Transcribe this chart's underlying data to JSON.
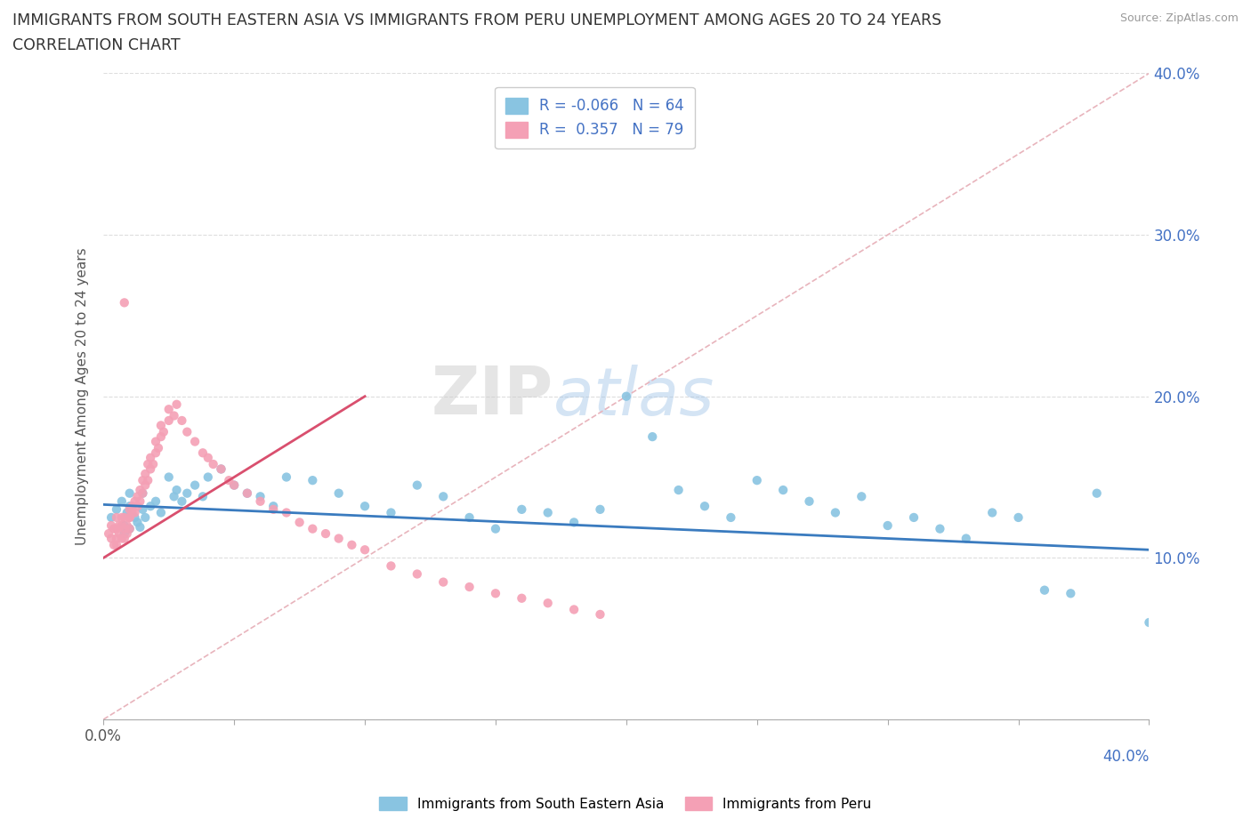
{
  "title_line1": "IMMIGRANTS FROM SOUTH EASTERN ASIA VS IMMIGRANTS FROM PERU UNEMPLOYMENT AMONG AGES 20 TO 24 YEARS",
  "title_line2": "CORRELATION CHART",
  "source_text": "Source: ZipAtlas.com",
  "ylabel": "Unemployment Among Ages 20 to 24 years",
  "xlim": [
    0,
    0.4
  ],
  "ylim": [
    0,
    0.4
  ],
  "xtick_positions": [
    0.0,
    0.05,
    0.1,
    0.15,
    0.2,
    0.25,
    0.3,
    0.35,
    0.4
  ],
  "ytick_positions": [
    0.0,
    0.1,
    0.2,
    0.3,
    0.4
  ],
  "right_yticklabels": [
    "",
    "10.0%",
    "20.0%",
    "30.0%",
    "40.0%"
  ],
  "blue_color": "#89c4e1",
  "pink_color": "#f4a0b5",
  "blue_line_color": "#3a7bbf",
  "pink_line_color": "#d94f6e",
  "diag_line_color": "#e8b4bc",
  "R_blue": -0.066,
  "N_blue": 64,
  "R_pink": 0.357,
  "N_pink": 79,
  "legend_label_blue": "Immigrants from South Eastern Asia",
  "legend_label_pink": "Immigrants from Peru",
  "watermark": "ZIPatlas",
  "background_color": "#ffffff",
  "blue_scatter_x": [
    0.003,
    0.005,
    0.007,
    0.008,
    0.008,
    0.009,
    0.01,
    0.01,
    0.01,
    0.012,
    0.013,
    0.014,
    0.015,
    0.015,
    0.016,
    0.018,
    0.02,
    0.022,
    0.025,
    0.027,
    0.028,
    0.03,
    0.032,
    0.035,
    0.038,
    0.04,
    0.045,
    0.05,
    0.055,
    0.06,
    0.065,
    0.07,
    0.08,
    0.09,
    0.1,
    0.11,
    0.12,
    0.13,
    0.14,
    0.15,
    0.16,
    0.17,
    0.18,
    0.19,
    0.2,
    0.21,
    0.22,
    0.23,
    0.24,
    0.25,
    0.26,
    0.27,
    0.28,
    0.29,
    0.3,
    0.31,
    0.32,
    0.33,
    0.34,
    0.35,
    0.36,
    0.37,
    0.38,
    0.4
  ],
  "blue_scatter_y": [
    0.125,
    0.13,
    0.135,
    0.12,
    0.115,
    0.128,
    0.132,
    0.118,
    0.14,
    0.125,
    0.122,
    0.119,
    0.13,
    0.14,
    0.125,
    0.132,
    0.135,
    0.128,
    0.15,
    0.138,
    0.142,
    0.135,
    0.14,
    0.145,
    0.138,
    0.15,
    0.155,
    0.145,
    0.14,
    0.138,
    0.132,
    0.15,
    0.148,
    0.14,
    0.132,
    0.128,
    0.145,
    0.138,
    0.125,
    0.118,
    0.13,
    0.128,
    0.122,
    0.13,
    0.2,
    0.175,
    0.142,
    0.132,
    0.125,
    0.148,
    0.142,
    0.135,
    0.128,
    0.138,
    0.12,
    0.125,
    0.118,
    0.112,
    0.128,
    0.125,
    0.08,
    0.078,
    0.14,
    0.06
  ],
  "pink_scatter_x": [
    0.002,
    0.003,
    0.003,
    0.004,
    0.004,
    0.005,
    0.005,
    0.005,
    0.005,
    0.006,
    0.006,
    0.007,
    0.007,
    0.007,
    0.008,
    0.008,
    0.008,
    0.009,
    0.009,
    0.01,
    0.01,
    0.01,
    0.01,
    0.011,
    0.011,
    0.012,
    0.012,
    0.013,
    0.013,
    0.014,
    0.014,
    0.015,
    0.015,
    0.016,
    0.016,
    0.017,
    0.017,
    0.018,
    0.018,
    0.019,
    0.02,
    0.02,
    0.021,
    0.022,
    0.022,
    0.023,
    0.025,
    0.025,
    0.027,
    0.028,
    0.03,
    0.032,
    0.035,
    0.038,
    0.04,
    0.042,
    0.045,
    0.048,
    0.05,
    0.055,
    0.06,
    0.065,
    0.07,
    0.075,
    0.08,
    0.085,
    0.09,
    0.095,
    0.1,
    0.11,
    0.12,
    0.13,
    0.14,
    0.15,
    0.16,
    0.17,
    0.18,
    0.19,
    0.008
  ],
  "pink_scatter_y": [
    0.115,
    0.12,
    0.112,
    0.108,
    0.118,
    0.108,
    0.112,
    0.118,
    0.125,
    0.115,
    0.12,
    0.112,
    0.12,
    0.125,
    0.112,
    0.118,
    0.125,
    0.115,
    0.12,
    0.125,
    0.13,
    0.118,
    0.125,
    0.128,
    0.132,
    0.128,
    0.135,
    0.132,
    0.138,
    0.135,
    0.142,
    0.14,
    0.148,
    0.145,
    0.152,
    0.148,
    0.158,
    0.155,
    0.162,
    0.158,
    0.165,
    0.172,
    0.168,
    0.175,
    0.182,
    0.178,
    0.185,
    0.192,
    0.188,
    0.195,
    0.185,
    0.178,
    0.172,
    0.165,
    0.162,
    0.158,
    0.155,
    0.148,
    0.145,
    0.14,
    0.135,
    0.13,
    0.128,
    0.122,
    0.118,
    0.115,
    0.112,
    0.108,
    0.105,
    0.095,
    0.09,
    0.085,
    0.082,
    0.078,
    0.075,
    0.072,
    0.068,
    0.065,
    0.258
  ]
}
